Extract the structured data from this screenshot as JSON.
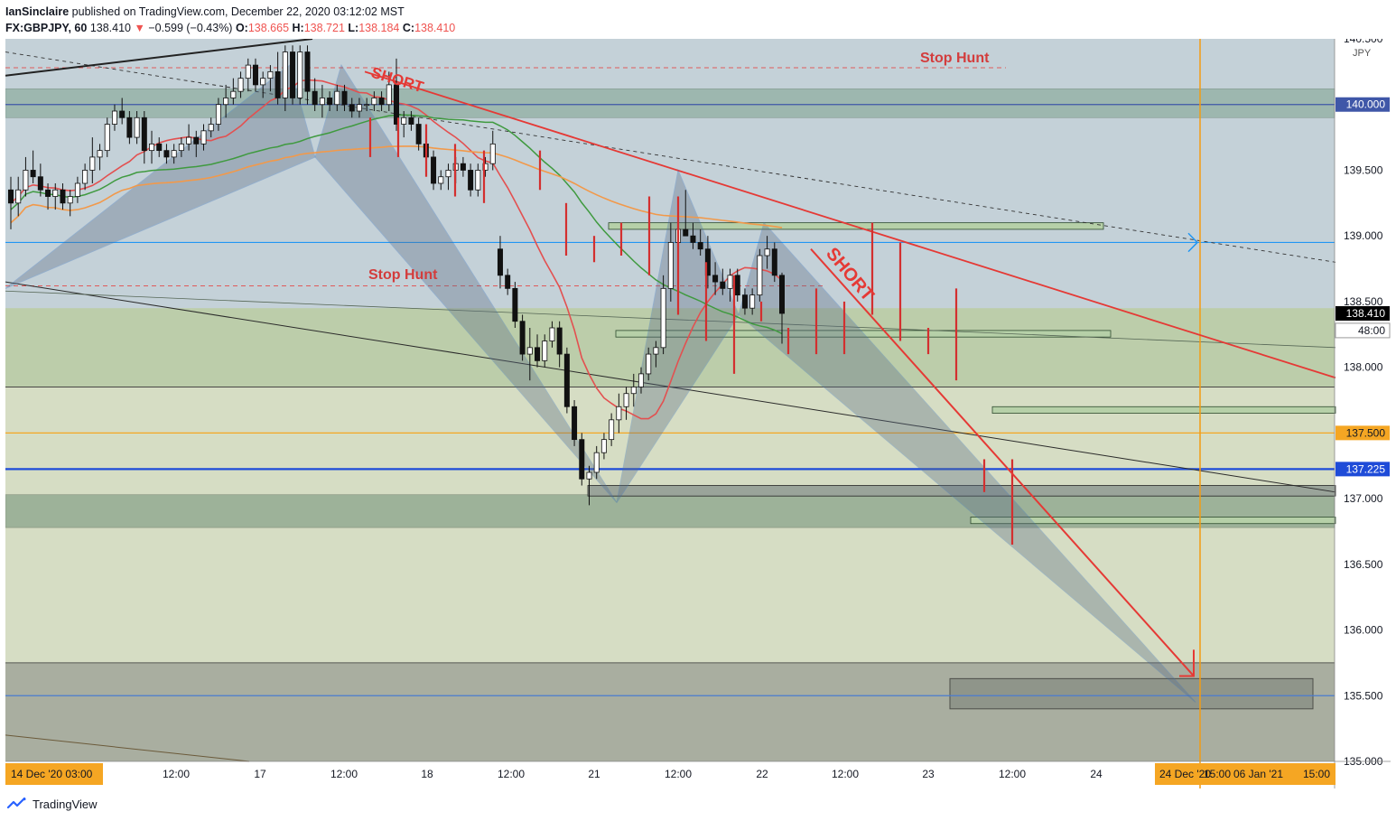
{
  "header": {
    "author": "IanSinclaire",
    "published": " published on TradingView.com, December 22, 2020 03:12:02 MST",
    "symbol": "FX:GBPJPY, 60",
    "last": "138.410",
    "change": "−0.599 (−0.43%)",
    "o_label": "O:",
    "o_value": "138.665",
    "h_label": "H:",
    "h_value": "138.721",
    "l_label": "L:",
    "l_value": "138.184",
    "c_label": "C:",
    "c_value": "138.410"
  },
  "footer": {
    "brand": "TradingView"
  },
  "chart_data": {
    "type": "candlestick",
    "symbol": "FX:GBPJPY",
    "interval": "60",
    "ylabel": "JPY",
    "ylim": [
      135.0,
      140.5
    ],
    "y_ticks": [
      "140.500",
      "140.000",
      "139.500",
      "139.000",
      "138.500",
      "138.000",
      "137.500",
      "137.000",
      "136.500",
      "136.000",
      "135.500",
      "135.000"
    ],
    "x_tick_labels": [
      "14 Dec '20  03:00",
      "12:00",
      "17",
      "12:00",
      "18",
      "12:00",
      "21",
      "12:00",
      "22",
      "12:00",
      "23",
      "12:00",
      "24",
      "24 Dec '20",
      "15:00",
      "06 Jan '21",
      "15:00"
    ],
    "price_tags": [
      {
        "value": "140.000",
        "color": "#3f57a8"
      },
      {
        "value": "138.410",
        "color": "#000000"
      },
      {
        "value": "48:00",
        "color": "#ffffff"
      },
      {
        "value": "137.500",
        "color": "#f5a623"
      },
      {
        "value": "137.225",
        "color": "#1e4bd8"
      }
    ],
    "annotations": [
      {
        "text": "SHORT",
        "color": "#e53935"
      },
      {
        "text": "Stop Hunt",
        "color": "#d33c3c"
      },
      {
        "text": "Stop Hunt",
        "color": "#d33c3c"
      },
      {
        "text": "SHORT",
        "color": "#e53935"
      }
    ],
    "levels": [
      {
        "price": 140.0,
        "color": "#3f57a8"
      },
      {
        "price": 138.95,
        "color": "#2196f3"
      },
      {
        "price": 137.5,
        "color": "#f5a623"
      },
      {
        "price": 137.225,
        "color": "#1e4bd8"
      },
      {
        "price": 135.5,
        "color": "#4a7bd0"
      }
    ],
    "candles": [
      [
        139.35,
        139.45,
        139.05,
        139.25
      ],
      [
        139.25,
        139.45,
        139.15,
        139.35
      ],
      [
        139.35,
        139.6,
        139.3,
        139.5
      ],
      [
        139.5,
        139.65,
        139.4,
        139.45
      ],
      [
        139.45,
        139.55,
        139.3,
        139.35
      ],
      [
        139.35,
        139.4,
        139.2,
        139.3
      ],
      [
        139.3,
        139.4,
        139.2,
        139.35
      ],
      [
        139.35,
        139.4,
        139.2,
        139.25
      ],
      [
        139.25,
        139.35,
        139.15,
        139.3
      ],
      [
        139.3,
        139.45,
        139.25,
        139.4
      ],
      [
        139.4,
        139.55,
        139.35,
        139.5
      ],
      [
        139.5,
        139.75,
        139.4,
        139.6
      ],
      [
        139.6,
        139.7,
        139.5,
        139.65
      ],
      [
        139.65,
        139.9,
        139.6,
        139.85
      ],
      [
        139.85,
        140.0,
        139.8,
        139.95
      ],
      [
        139.95,
        140.05,
        139.85,
        139.9
      ],
      [
        139.9,
        139.95,
        139.7,
        139.75
      ],
      [
        139.75,
        139.95,
        139.7,
        139.9
      ],
      [
        139.9,
        139.95,
        139.55,
        139.65
      ],
      [
        139.65,
        139.8,
        139.55,
        139.7
      ],
      [
        139.7,
        139.75,
        139.6,
        139.65
      ],
      [
        139.65,
        139.7,
        139.55,
        139.6
      ],
      [
        139.6,
        139.7,
        139.55,
        139.65
      ],
      [
        139.65,
        139.75,
        139.6,
        139.7
      ],
      [
        139.7,
        139.85,
        139.65,
        139.75
      ],
      [
        139.75,
        139.8,
        139.6,
        139.7
      ],
      [
        139.7,
        139.85,
        139.65,
        139.8
      ],
      [
        139.8,
        139.9,
        139.75,
        139.85
      ],
      [
        139.85,
        140.05,
        139.8,
        140.0
      ],
      [
        140.0,
        140.15,
        139.9,
        140.05
      ],
      [
        140.05,
        140.2,
        140.0,
        140.1
      ],
      [
        140.1,
        140.25,
        140.05,
        140.2
      ],
      [
        140.2,
        140.35,
        140.1,
        140.3
      ],
      [
        140.3,
        140.35,
        140.1,
        140.15
      ],
      [
        140.15,
        140.25,
        140.05,
        140.2
      ],
      [
        140.2,
        140.3,
        140.1,
        140.25
      ],
      [
        140.25,
        140.4,
        140.0,
        140.05
      ],
      [
        140.05,
        140.45,
        139.95,
        140.4
      ],
      [
        140.4,
        140.45,
        140.0,
        140.05
      ],
      [
        140.05,
        140.45,
        140.0,
        140.4
      ],
      [
        140.4,
        140.45,
        140.0,
        140.1
      ],
      [
        140.1,
        140.2,
        139.95,
        140.0
      ],
      [
        140.0,
        140.15,
        139.9,
        140.05
      ],
      [
        140.05,
        140.1,
        139.95,
        140.0
      ],
      [
        140.0,
        140.15,
        139.95,
        140.1
      ],
      [
        140.1,
        140.15,
        139.95,
        140.0
      ],
      [
        140.0,
        140.05,
        139.9,
        139.95
      ],
      [
        139.95,
        140.05,
        139.9,
        140.0
      ],
      [
        140.0,
        140.05,
        139.95,
        140.0
      ],
      [
        140.0,
        140.1,
        139.95,
        140.05
      ],
      [
        140.05,
        140.1,
        139.95,
        140.0
      ],
      [
        140.0,
        140.25,
        139.95,
        140.15
      ],
      [
        140.15,
        140.35,
        139.8,
        139.85
      ],
      [
        139.85,
        139.95,
        139.75,
        139.9
      ],
      [
        139.9,
        139.95,
        139.8,
        139.85
      ],
      [
        139.85,
        139.9,
        139.65,
        139.7
      ],
      [
        139.7,
        139.8,
        139.55,
        139.6
      ],
      [
        139.6,
        139.65,
        139.35,
        139.4
      ],
      [
        139.4,
        139.5,
        139.35,
        139.45
      ],
      [
        139.45,
        139.55,
        139.35,
        139.5
      ],
      [
        139.5,
        139.6,
        139.4,
        139.55
      ],
      [
        139.55,
        139.6,
        139.45,
        139.5
      ],
      [
        139.5,
        139.55,
        139.3,
        139.35
      ],
      [
        139.35,
        139.55,
        139.3,
        139.5
      ],
      [
        139.5,
        139.6,
        139.45,
        139.55
      ],
      [
        139.55,
        139.8,
        139.5,
        139.7
      ],
      [
        138.9,
        139.0,
        138.6,
        138.7
      ],
      [
        138.7,
        138.75,
        138.55,
        138.6
      ],
      [
        138.6,
        138.65,
        138.3,
        138.35
      ],
      [
        138.35,
        138.4,
        138.05,
        138.1
      ],
      [
        138.1,
        138.3,
        137.9,
        138.15
      ],
      [
        138.15,
        138.25,
        138.0,
        138.05
      ],
      [
        138.05,
        138.25,
        138.0,
        138.2
      ],
      [
        138.2,
        138.35,
        138.15,
        138.3
      ],
      [
        138.3,
        138.35,
        138.0,
        138.1
      ],
      [
        138.1,
        138.15,
        137.65,
        137.7
      ],
      [
        137.7,
        137.75,
        137.4,
        137.45
      ],
      [
        137.45,
        137.5,
        137.1,
        137.15
      ],
      [
        137.15,
        137.25,
        136.95,
        137.2
      ],
      [
        137.2,
        137.4,
        137.15,
        137.35
      ],
      [
        137.35,
        137.5,
        137.3,
        137.45
      ],
      [
        137.45,
        137.65,
        137.4,
        137.6
      ],
      [
        137.6,
        137.8,
        137.5,
        137.7
      ],
      [
        137.7,
        137.85,
        137.6,
        137.8
      ],
      [
        137.8,
        137.95,
        137.7,
        137.85
      ],
      [
        137.85,
        138.0,
        137.8,
        137.95
      ],
      [
        137.95,
        138.15,
        137.9,
        138.1
      ],
      [
        138.1,
        138.2,
        138.0,
        138.15
      ],
      [
        138.15,
        138.7,
        138.1,
        138.6
      ],
      [
        138.6,
        139.1,
        138.5,
        138.95
      ],
      [
        138.95,
        139.2,
        138.85,
        139.05
      ],
      [
        139.05,
        139.35,
        139.0,
        139.0
      ],
      [
        139.0,
        139.1,
        138.9,
        138.95
      ],
      [
        138.95,
        139.05,
        138.85,
        138.9
      ],
      [
        138.9,
        139.0,
        138.6,
        138.7
      ],
      [
        138.7,
        138.8,
        138.55,
        138.65
      ],
      [
        138.65,
        138.75,
        138.55,
        138.6
      ],
      [
        138.6,
        138.75,
        138.5,
        138.7
      ],
      [
        138.7,
        138.75,
        138.5,
        138.55
      ],
      [
        138.55,
        138.6,
        138.4,
        138.45
      ],
      [
        138.45,
        138.6,
        138.4,
        138.55
      ],
      [
        138.55,
        138.9,
        138.5,
        138.85
      ],
      [
        138.85,
        139.0,
        138.75,
        138.9
      ],
      [
        138.9,
        138.95,
        138.65,
        138.7
      ],
      [
        138.7,
        138.72,
        138.18,
        138.41
      ]
    ],
    "sma_red": "SMA short",
    "sma_green": "SMA mid",
    "sma_orange": "SMA long"
  }
}
